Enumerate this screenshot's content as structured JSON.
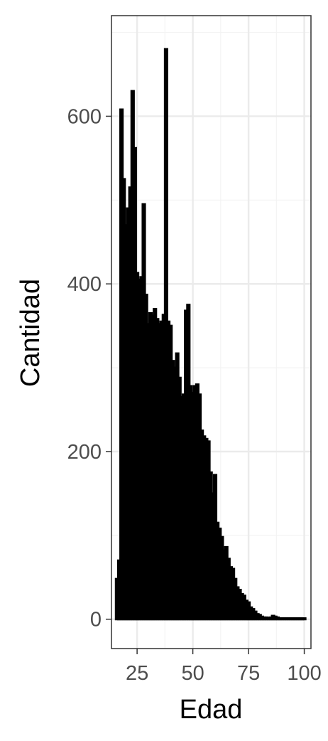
{
  "chart_data": {
    "type": "bar",
    "title": "",
    "xlabel": "Edad",
    "ylabel": "Cantidad",
    "xlim": [
      13.5,
      103
    ],
    "ylim": [
      -35,
      720
    ],
    "x_major_ticks": [
      25,
      50,
      75,
      100
    ],
    "x_tick_labels": [
      "25",
      "50",
      "75",
      "100"
    ],
    "x_minor_ticks": [
      12.5,
      37.5,
      62.5,
      87.5
    ],
    "y_major_ticks": [
      0,
      200,
      400,
      600
    ],
    "y_tick_labels": [
      "0",
      "200",
      "400",
      "600"
    ],
    "y_minor_ticks": [
      100,
      300,
      500,
      700
    ],
    "grid": true,
    "legend": "none",
    "bar_color": "#000000",
    "panel_border_color": "#333333",
    "major_grid_color": "#ebebeb",
    "minor_grid_color": "#f3f3f3",
    "x": [
      16,
      17,
      18,
      19,
      20,
      21,
      22,
      23,
      24,
      25,
      26,
      27,
      28,
      29,
      30,
      31,
      32,
      33,
      34,
      35,
      36,
      37,
      38,
      39,
      40,
      41,
      42,
      43,
      44,
      45,
      46,
      47,
      48,
      49,
      50,
      51,
      52,
      53,
      54,
      55,
      56,
      57,
      58,
      59,
      60,
      61,
      62,
      63,
      64,
      65,
      66,
      67,
      68,
      69,
      70,
      71,
      72,
      73,
      74,
      75,
      76,
      77,
      78,
      79,
      80,
      81,
      82,
      83,
      84,
      85,
      86,
      87,
      88,
      89,
      90,
      91,
      92,
      93,
      94,
      95,
      96,
      97,
      98,
      99,
      100
    ],
    "values": [
      48,
      70,
      608,
      525,
      470,
      490,
      515,
      630,
      562,
      413,
      405,
      408,
      495,
      387,
      352,
      365,
      362,
      370,
      358,
      352,
      355,
      363,
      680,
      355,
      350,
      308,
      300,
      317,
      288,
      265,
      268,
      368,
      375,
      278,
      270,
      278,
      280,
      268,
      225,
      218,
      215,
      212,
      175,
      150,
      172,
      115,
      108,
      98,
      82,
      86,
      72,
      62,
      60,
      48,
      38,
      35,
      30,
      28,
      22,
      20,
      14,
      12,
      9,
      6,
      5,
      3,
      2,
      2,
      1,
      2,
      4,
      3,
      2,
      1,
      1,
      1,
      1,
      1,
      1,
      1,
      1,
      1,
      1,
      1,
      1
    ],
    "line_y": [
      [
        16,
        48
      ],
      [
        17,
        70
      ],
      [
        18,
        608
      ],
      [
        19,
        525
      ],
      [
        20,
        470
      ],
      [
        21,
        490
      ],
      [
        22,
        515
      ],
      [
        23,
        630
      ],
      [
        24,
        562
      ],
      [
        25,
        413
      ],
      [
        26,
        405
      ],
      [
        27,
        408
      ],
      [
        28,
        495
      ],
      [
        29,
        387
      ],
      [
        30,
        352
      ],
      [
        31,
        365
      ],
      [
        32,
        362
      ],
      [
        33,
        370
      ],
      [
        34,
        358
      ],
      [
        35,
        352
      ],
      [
        36,
        355
      ],
      [
        37,
        363
      ],
      [
        38,
        680
      ],
      [
        39,
        355
      ],
      [
        40,
        350
      ],
      [
        41,
        308
      ],
      [
        42,
        300
      ],
      [
        43,
        317
      ],
      [
        44,
        288
      ],
      [
        45,
        265
      ],
      [
        46,
        268
      ],
      [
        47,
        368
      ],
      [
        48,
        375
      ],
      [
        49,
        278
      ],
      [
        50,
        270
      ],
      [
        51,
        278
      ],
      [
        52,
        280
      ],
      [
        53,
        268
      ],
      [
        54,
        225
      ],
      [
        55,
        218
      ],
      [
        56,
        215
      ],
      [
        57,
        212
      ],
      [
        58,
        175
      ],
      [
        59,
        150
      ],
      [
        60,
        172
      ],
      [
        61,
        115
      ],
      [
        62,
        108
      ],
      [
        63,
        98
      ],
      [
        64,
        82
      ],
      [
        65,
        86
      ],
      [
        66,
        72
      ],
      [
        67,
        62
      ],
      [
        68,
        60
      ],
      [
        69,
        48
      ],
      [
        70,
        38
      ],
      [
        71,
        35
      ],
      [
        72,
        30
      ],
      [
        73,
        28
      ],
      [
        74,
        22
      ],
      [
        75,
        20
      ],
      [
        76,
        14
      ],
      [
        77,
        12
      ],
      [
        78,
        9
      ],
      [
        79,
        6
      ],
      [
        80,
        5
      ],
      [
        81,
        3
      ],
      [
        82,
        2
      ],
      [
        83,
        2
      ],
      [
        84,
        1
      ],
      [
        85,
        2
      ],
      [
        86,
        4
      ],
      [
        87,
        3
      ],
      [
        88,
        2
      ],
      [
        89,
        1
      ],
      [
        90,
        1
      ],
      [
        91,
        1
      ],
      [
        92,
        1
      ],
      [
        93,
        1
      ],
      [
        94,
        1
      ],
      [
        95,
        1
      ],
      [
        96,
        1
      ],
      [
        97,
        1
      ],
      [
        98,
        1
      ],
      [
        99,
        1
      ],
      [
        100,
        1
      ]
    ]
  }
}
